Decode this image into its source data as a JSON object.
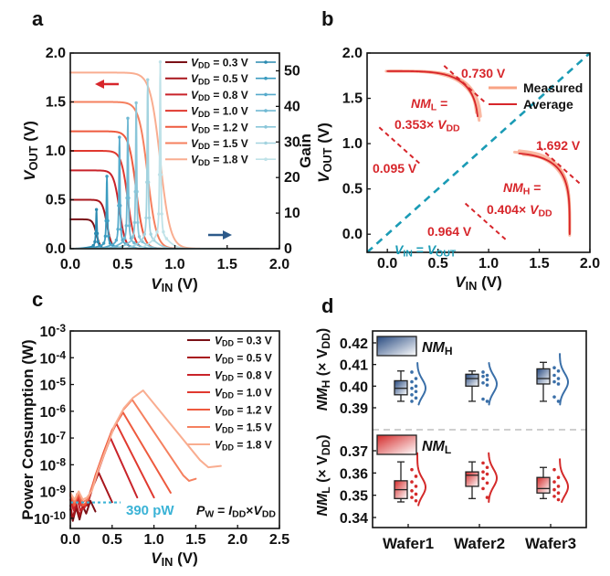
{
  "panels": {
    "a": "a",
    "b": "b",
    "c": "c",
    "d": "d"
  },
  "colors": {
    "vtc": [
      "#7a1016",
      "#a8161c",
      "#c9232a",
      "#e0392f",
      "#ee5a3e",
      "#f5805f",
      "#f9ad90"
    ],
    "gain": [
      "#2a8ab0",
      "#3b9cc0",
      "#55aacb",
      "#70b9d3",
      "#8ac6d9",
      "#a3d3df",
      "#bfe2e8"
    ],
    "teal": "#1a9bb5",
    "red": "#d7262b",
    "measured": "#f8a385",
    "nmh": "#3a6fa8",
    "nml": "#d42a2a"
  },
  "chart_data": [
    {
      "panel": "a",
      "type": "line",
      "xlabel": "*V*_{IN} (V)",
      "ylabel": "*V*_{OUT} (V)",
      "y2label": "Gain",
      "xlim": [
        0,
        2
      ],
      "ylim": [
        0,
        2
      ],
      "y2lim": [
        0,
        55
      ],
      "xticks": [
        "0.0",
        "0.5",
        "1.0",
        "1.5",
        "2.0"
      ],
      "yticks": [
        "0.0",
        "0.5",
        "1.0",
        "1.5",
        "2.0"
      ],
      "y2ticks": [
        "0",
        "10",
        "20",
        "30",
        "40",
        "50"
      ],
      "arrows": [
        "left: VOUT axis",
        "right: Gain axis"
      ],
      "series": [
        {
          "name": "*V*_{DD} = 0.3 V",
          "vdd": 0.3,
          "switching_vin": 0.25,
          "peak_gain": 10.5
        },
        {
          "name": "*V*_{DD} = 0.5 V",
          "vdd": 0.5,
          "switching_vin": 0.35,
          "peak_gain": 19.5
        },
        {
          "name": "*V*_{DD} = 0.8 V",
          "vdd": 0.8,
          "switching_vin": 0.47,
          "peak_gain": 30
        },
        {
          "name": "*V*_{DD} = 1.0 V",
          "vdd": 1.0,
          "switching_vin": 0.55,
          "peak_gain": 35
        },
        {
          "name": "*V*_{DD} = 1.2 V",
          "vdd": 1.2,
          "switching_vin": 0.63,
          "peak_gain": 39
        },
        {
          "name": "*V*_{DD} = 1.5 V",
          "vdd": 1.5,
          "switching_vin": 0.74,
          "peak_gain": 45
        },
        {
          "name": "*V*_{DD} = 1.8 V",
          "vdd": 1.8,
          "switching_vin": 0.86,
          "peak_gain": 49.5
        }
      ]
    },
    {
      "panel": "b",
      "type": "line",
      "xlabel": "*V*_{IN} (V)",
      "ylabel": "*V*_{OUT} (V)",
      "xlim": [
        -0.2,
        2
      ],
      "ylim": [
        -0.2,
        2
      ],
      "xticks": [
        "0.0",
        "0.5",
        "1.0",
        "1.5",
        "2.0"
      ],
      "yticks": [
        "0.0",
        "0.5",
        "1.0",
        "1.5",
        "2.0"
      ],
      "vdd": 1.8,
      "switching_vin": 0.9,
      "legend": [
        "Measured",
        "Average"
      ],
      "annotations": {
        "vih_top": "0.730 V",
        "nml_title": "*NM*_{L} =",
        "nml_value": "0.353× *V*_{DD}",
        "vol_right": "1.692 V",
        "vil_left": "0.095 V",
        "nmh_title": "*NM*_{H} =",
        "nmh_value": "0.404× *V*_{DD}",
        "voh_bottom": "0.964 V",
        "diagonal": "*V*_{IN} = *V*_{OUT}"
      },
      "tangent_points": [
        [
          0.76,
          1.66
        ],
        [
          0.12,
          0.98
        ],
        [
          1.7,
          0.76
        ],
        [
          0.97,
          0.14
        ]
      ]
    },
    {
      "panel": "c",
      "type": "line",
      "xlabel": "*V*_{IN} (V)",
      "ylabel": "Power Consumption (W)",
      "yscale": "log",
      "xlim": [
        0,
        2.5
      ],
      "ylim": [
        4.2e-11,
        0.001
      ],
      "xticks": [
        "0.0",
        "0.5",
        "1.0",
        "1.5",
        "2.0",
        "2.5"
      ],
      "yticks": [
        0.001,
        0.0001,
        1e-05,
        1e-06,
        1e-07,
        1e-08,
        1e-09,
        1e-10
      ],
      "ytick_labels": [
        "10^{-3}",
        "10^{-4}",
        "10^{-5}",
        "10^{-6}",
        "10^{-7}",
        "10^{-8}",
        "10^{-9}",
        "10^{-10}"
      ],
      "reference_line": {
        "value": 3.9e-10,
        "x_range": [
          0,
          0.6
        ],
        "label": "390 pW"
      },
      "formula": "*P*_{W} = *I*_{DD}×*V*_{DD}",
      "series": [
        {
          "name": "*V*_{DD} = 0.3 V",
          "points": [
            [
              0,
              2.2e-10
            ],
            [
              0.03,
              8e-11
            ],
            [
              0.07,
              2.5e-10
            ],
            [
              0.11,
              9e-11
            ],
            [
              0.15,
              2.8e-10
            ],
            [
              0.19,
              1.5e-10
            ],
            [
              0.24,
              4.5e-10
            ],
            [
              0.3,
              1.8e-10
            ]
          ]
        },
        {
          "name": "*V*_{DD} = 0.5 V",
          "points": [
            [
              0,
              3e-10
            ],
            [
              0.03,
              1e-10
            ],
            [
              0.07,
              3.5e-10
            ],
            [
              0.11,
              1.2e-10
            ],
            [
              0.15,
              3e-10
            ],
            [
              0.2,
              3e-10
            ],
            [
              0.27,
              1.5e-09
            ],
            [
              0.34,
              5e-09
            ],
            [
              0.5,
              4e-10
            ]
          ]
        },
        {
          "name": "*V*_{DD} = 0.8 V",
          "points": [
            [
              0,
              5e-10
            ],
            [
              0.04,
              2e-10
            ],
            [
              0.08,
              6e-10
            ],
            [
              0.12,
              2e-10
            ],
            [
              0.17,
              2.5e-10
            ],
            [
              0.22,
              6e-10
            ],
            [
              0.3,
              3e-09
            ],
            [
              0.4,
              2.2e-08
            ],
            [
              0.48,
              1e-07
            ],
            [
              0.8,
              6e-10
            ]
          ]
        },
        {
          "name": "*V*_{DD} = 1.0 V",
          "points": [
            [
              0,
              7e-10
            ],
            [
              0.04,
              3e-10
            ],
            [
              0.08,
              8e-10
            ],
            [
              0.13,
              3e-10
            ],
            [
              0.18,
              3e-10
            ],
            [
              0.23,
              8e-10
            ],
            [
              0.3,
              3.5e-09
            ],
            [
              0.4,
              2.6e-08
            ],
            [
              0.48,
              1.2e-07
            ],
            [
              0.55,
              3.5e-07
            ],
            [
              1.0,
              6e-10
            ]
          ]
        },
        {
          "name": "*V*_{DD} = 1.2 V",
          "points": [
            [
              0,
              8e-10
            ],
            [
              0.05,
              3e-10
            ],
            [
              0.1,
              9e-10
            ],
            [
              0.15,
              3e-10
            ],
            [
              0.2,
              4e-10
            ],
            [
              0.24,
              9e-10
            ],
            [
              0.3,
              4e-09
            ],
            [
              0.4,
              3e-08
            ],
            [
              0.5,
              2e-07
            ],
            [
              0.63,
              9e-07
            ],
            [
              1.2,
              9e-10
            ]
          ]
        },
        {
          "name": "*V*_{DD} = 1.5 V",
          "points": [
            [
              0,
              9e-10
            ],
            [
              0.05,
              4e-10
            ],
            [
              0.1,
              1e-09
            ],
            [
              0.15,
              4e-10
            ],
            [
              0.2,
              5e-10
            ],
            [
              0.25,
              1e-09
            ],
            [
              0.32,
              5e-09
            ],
            [
              0.42,
              3.5e-08
            ],
            [
              0.52,
              2.5e-07
            ],
            [
              0.63,
              1.1e-06
            ],
            [
              0.74,
              2.7e-06
            ],
            [
              1.35,
              4e-09
            ],
            [
              1.42,
              2.5e-09
            ],
            [
              1.5,
              3e-09
            ]
          ]
        },
        {
          "name": "*V*_{DD} = 1.8 V",
          "points": [
            [
              0,
              9e-10
            ],
            [
              0.05,
              5e-10
            ],
            [
              0.1,
              1e-09
            ],
            [
              0.15,
              5e-10
            ],
            [
              0.2,
              6e-10
            ],
            [
              0.26,
              1.1e-09
            ],
            [
              0.33,
              6e-09
            ],
            [
              0.43,
              4e-08
            ],
            [
              0.53,
              3e-07
            ],
            [
              0.64,
              1.3e-06
            ],
            [
              0.75,
              3.2e-06
            ],
            [
              0.87,
              6e-06
            ],
            [
              1.55,
              1.5e-08
            ],
            [
              1.65,
              8e-09
            ],
            [
              1.8,
              9e-09
            ]
          ]
        }
      ]
    },
    {
      "panel": "d",
      "type": "box",
      "categories": [
        "Wafer1",
        "Wafer2",
        "Wafer3"
      ],
      "nmh": {
        "legend": "*NM*_{H}",
        "ylabel": "*NM*_{H} (× V_{DD})",
        "ylim": [
          0.38,
          0.4225
        ],
        "yticks": [
          "0.39",
          "0.40",
          "0.41",
          "0.42"
        ],
        "boxes": [
          {
            "min": 0.393,
            "q1": 0.396,
            "median": 0.399,
            "q3": 0.4025,
            "max": 0.407,
            "points": [
              0.4065,
              0.4035,
              0.402,
              0.4,
              0.399,
              0.3975,
              0.396,
              0.3945,
              0.393
            ]
          },
          {
            "min": 0.393,
            "q1": 0.4,
            "median": 0.4035,
            "q3": 0.4055,
            "max": 0.407,
            "points": [
              0.4065,
              0.405,
              0.4045,
              0.403,
              0.4015,
              0.4005,
              0.394,
              0.393
            ]
          },
          {
            "min": 0.393,
            "q1": 0.401,
            "median": 0.4035,
            "q3": 0.408,
            "max": 0.411,
            "points": [
              0.4085,
              0.407,
              0.405,
              0.4035,
              0.402,
              0.401,
              0.395,
              0.393
            ]
          }
        ]
      },
      "nml": {
        "legend": "*NM*_{L}",
        "ylabel": "*NM*_{L} (× V_{DD})",
        "ylim": [
          0.3355,
          0.379
        ],
        "yticks": [
          "0.34",
          "0.35",
          "0.36",
          "0.37"
        ],
        "boxes": [
          {
            "min": 0.347,
            "q1": 0.3485,
            "median": 0.3525,
            "q3": 0.3565,
            "max": 0.365,
            "points": [
              0.3615,
              0.3585,
              0.356,
              0.354,
              0.352,
              0.3505,
              0.349,
              0.3475
            ]
          },
          {
            "min": 0.3485,
            "q1": 0.354,
            "median": 0.359,
            "q3": 0.3605,
            "max": 0.365,
            "points": [
              0.3645,
              0.3625,
              0.3605,
              0.3595,
              0.3575,
              0.3555,
              0.353,
              0.349
            ]
          },
          {
            "min": 0.3485,
            "q1": 0.351,
            "median": 0.353,
            "q3": 0.358,
            "max": 0.3625,
            "points": [
              0.3615,
              0.358,
              0.356,
              0.354,
              0.3525,
              0.351,
              0.3495,
              0.348
            ]
          }
        ]
      }
    }
  ]
}
